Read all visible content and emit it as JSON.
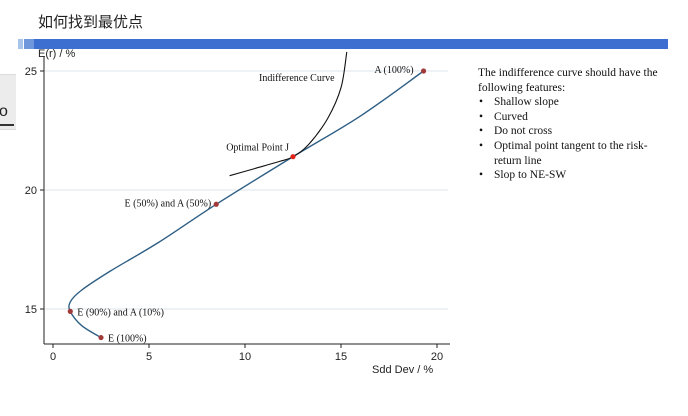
{
  "slide": {
    "title": "如何找到最优点",
    "edge_text": "o"
  },
  "chart_data": {
    "type": "line",
    "title": "",
    "xlabel": "Sdd Dev / %",
    "ylabel": "E(r) / %",
    "xlim": [
      -0.5,
      20.5
    ],
    "ylim": [
      13.6,
      25.6
    ],
    "xticks": [
      0,
      5,
      10,
      15,
      20
    ],
    "yticks": [
      15,
      20,
      25
    ],
    "grid": "horizontal",
    "colors": {
      "frontier": "#2e5f85",
      "indifference": "#111111",
      "points": "#a33a3a",
      "optimal": "#e2231a"
    },
    "frontier": {
      "x": [
        2.5,
        1.5,
        0.9,
        0.9,
        1.5,
        3.0,
        5.5,
        8.5,
        12.5,
        16.0,
        19.3
      ],
      "y": [
        13.8,
        14.3,
        14.9,
        15.3,
        15.8,
        16.6,
        17.8,
        19.4,
        21.4,
        23.1,
        25.0
      ]
    },
    "indifference_curve": {
      "x": [
        9.2,
        10.5,
        11.8,
        12.5,
        13.3,
        14.3,
        15.0,
        15.3
      ],
      "y": [
        20.6,
        20.9,
        21.2,
        21.4,
        21.9,
        23.0,
        24.3,
        25.8
      ]
    },
    "points": [
      {
        "label": "A (100%)",
        "x": 19.3,
        "y": 25.0
      },
      {
        "label": "Optimal Point J",
        "x": 12.5,
        "y": 21.4
      },
      {
        "label": "E (50%) and A (50%)",
        "x": 8.5,
        "y": 19.4
      },
      {
        "label": "E (90%) and A (10%)",
        "x": 0.9,
        "y": 14.9
      },
      {
        "label": "E (100%)",
        "x": 2.5,
        "y": 13.8
      }
    ],
    "annotations": [
      {
        "text": "Indifference Curve"
      }
    ]
  },
  "features": {
    "intro": "The indifference curve should have the following features:",
    "items": [
      "Shallow slope",
      "Curved",
      "Do not cross",
      "Optimal point tangent to the risk-return line",
      "Slop to NE-SW"
    ]
  }
}
